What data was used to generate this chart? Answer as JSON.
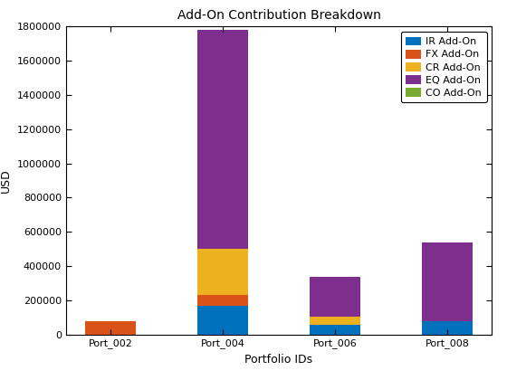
{
  "categories": [
    "Port_002",
    "Port_004",
    "Port_006",
    "Port_008"
  ],
  "series": [
    {
      "label": "IR Add-On",
      "color": "#0072BD",
      "values": [
        0,
        165000,
        55000,
        75000
      ]
    },
    {
      "label": "FX Add-On",
      "color": "#D95319",
      "values": [
        75000,
        65000,
        0,
        0
      ]
    },
    {
      "label": "CR Add-On",
      "color": "#EDB120",
      "values": [
        0,
        270000,
        50000,
        0
      ]
    },
    {
      "label": "EQ Add-On",
      "color": "#7E2F8E",
      "values": [
        0,
        1280000,
        230000,
        465000
      ]
    },
    {
      "label": "CO Add-On",
      "color": "#77AC30",
      "values": [
        0,
        0,
        0,
        0
      ]
    }
  ],
  "title": "Add-On Contribution Breakdown",
  "xlabel": "Portfolio IDs",
  "ylabel": "USD",
  "ylim": [
    0,
    1800000
  ],
  "yticks": [
    0,
    200000,
    400000,
    600000,
    800000,
    1000000,
    1200000,
    1400000,
    1600000,
    1800000
  ],
  "background_color": "#ffffff",
  "legend_loc": "upper right",
  "bar_width": 0.45,
  "figsize": [
    5.6,
    4.2
  ],
  "dpi": 100,
  "title_fontsize": 10,
  "label_fontsize": 9,
  "tick_fontsize": 8,
  "legend_fontsize": 8
}
